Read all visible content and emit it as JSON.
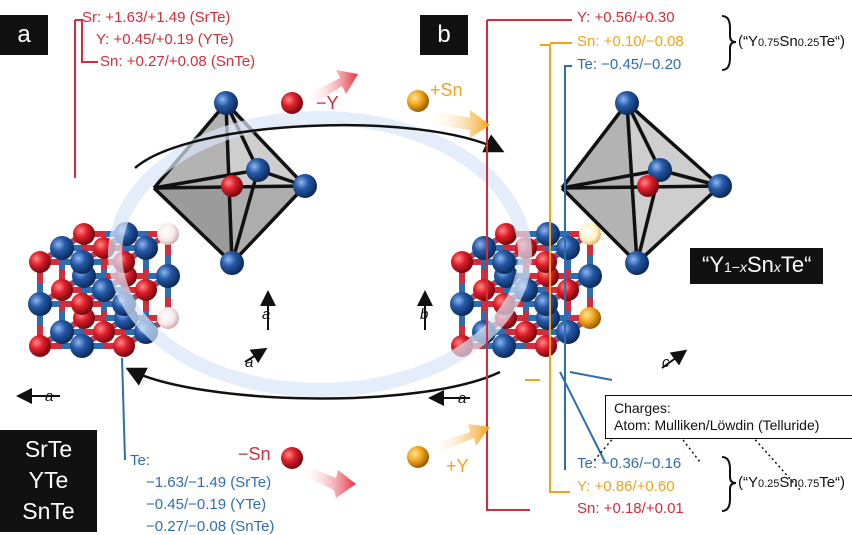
{
  "panel_a": {
    "tag": "a",
    "top_labels": [
      "Sr: +1.63/+1.49 (SrTe)",
      "Y: +0.45/+0.19 (YTe)",
      "Sn: +0.27/+0.08 (SnTe)"
    ],
    "remove_label": "−Y",
    "bottom_te_title": "Te:",
    "bottom_te_lines": [
      "−1.63/−1.49 (SrTe)",
      "−0.45/−0.19 (YTe)",
      "−0.27/−0.08 (SnTe)"
    ],
    "remove_bottom_label": "−Sn",
    "compounds": [
      "SrTe",
      "YTe",
      "SnTe"
    ],
    "axis_a": "a"
  },
  "panel_b": {
    "tag": "b",
    "add_label": "+Sn",
    "add_bottom_label": "+Y",
    "top_labels": [
      "Y: +0.56/+0.30",
      "Sn: +0.10/−0.08",
      "Te: −0.45/−0.20"
    ],
    "top_formula": {
      "pre": "(“Y",
      "s1": "0.75",
      "mid": "Sn",
      "s2": "0.25",
      "post": "Te“)"
    },
    "bottom_labels": [
      "Te: −0.36/−0.16",
      "Y: +0.86/+0.60",
      "Sn: +0.18/+0.01"
    ],
    "bottom_formula": {
      "pre": "(“Y",
      "s1": "0.25",
      "mid": "Sn",
      "s2": "0.75",
      "post": "Te“)"
    },
    "formula_box": {
      "pre": "“Y",
      "s1": "1−",
      "x1": "x",
      "mid": "Sn",
      "x2": "x",
      "post": "Te“"
    },
    "axis_b": "b",
    "axis_c": "c",
    "axis_a": "a"
  },
  "legend": {
    "title": "Charges:",
    "line": "Atom: Mulliken/Löwdin (Telluride)"
  },
  "colors": {
    "red": "#d22d3a",
    "blue": "#2f6db3",
    "orange": "#f0a21e",
    "white_atom": "#f3e6e6",
    "black": "#111111"
  }
}
